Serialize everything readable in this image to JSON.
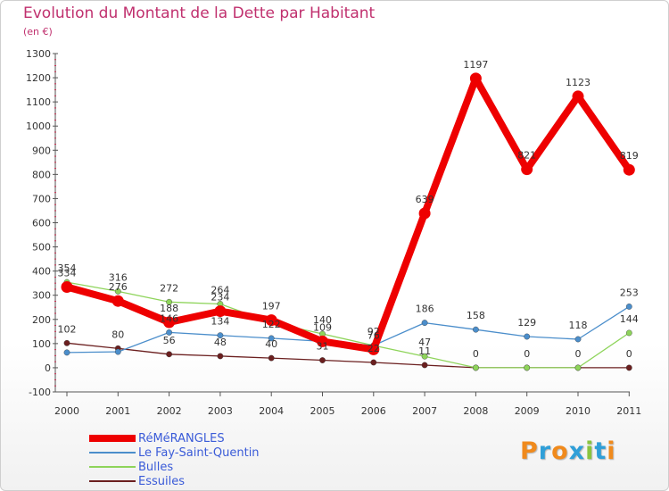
{
  "title": "Evolution du Montant de la Dette par Habitant",
  "subtitle": "(en €)",
  "logo": {
    "text": "Proxiti",
    "colors": [
      "#f08a1c",
      "#2f9fd8",
      "#f08a1c",
      "#2f9fd8",
      "#8ac43f",
      "#2f9fd8",
      "#f08a1c"
    ]
  },
  "chart_data": {
    "type": "line",
    "title": "Evolution du Montant de la Dette par Habitant",
    "subtitle": "(en €)",
    "categories": [
      "2000",
      "2001",
      "2002",
      "2003",
      "2004",
      "2005",
      "2006",
      "2007",
      "2008",
      "2009",
      "2010",
      "2011"
    ],
    "ylim": [
      -100,
      1300
    ],
    "yticks": [
      "-100",
      "0",
      "100",
      "200",
      "300",
      "400",
      "500",
      "600",
      "700",
      "800",
      "900",
      "1000",
      "1100",
      "1200",
      "1300"
    ],
    "grid": false,
    "legend_position": "bottom-left",
    "series": [
      {
        "name": "RéMéRANGLES",
        "color": "#ee0000",
        "values": [
          334,
          276,
          188,
          234,
          197,
          109,
          76,
          639,
          1197,
          821,
          1123,
          819
        ],
        "labels": [
          "334",
          "276",
          "188",
          "234",
          "197",
          "109",
          "76",
          "639",
          "1197",
          "821",
          "1123",
          "819"
        ]
      },
      {
        "name": "Le Fay-Saint-Quentin",
        "color": "#4b8ecb",
        "values": [
          63,
          66,
          146,
          134,
          122,
          109,
          92,
          186,
          158,
          129,
          118,
          253
        ],
        "labels": [
          "",
          "",
          "146",
          "134",
          "122",
          "",
          "",
          "186",
          "158",
          "129",
          "118",
          "253"
        ]
      },
      {
        "name": "Bulles",
        "color": "#8ed45a",
        "values": [
          354,
          316,
          272,
          264,
          187,
          140,
          92,
          47,
          0,
          0,
          0,
          144
        ],
        "labels": [
          "354",
          "316",
          "272",
          "264",
          "",
          "140",
          "92",
          "47",
          "",
          "",
          "",
          "144"
        ]
      },
      {
        "name": "Essuiles",
        "color": "#6b1f1f",
        "values": [
          102,
          80,
          56,
          48,
          40,
          31,
          22,
          11,
          0,
          0,
          0,
          0
        ],
        "labels": [
          "102",
          "80",
          "56",
          "48",
          "40",
          "31",
          "22",
          "11",
          "0",
          "0",
          "0",
          "0"
        ]
      }
    ]
  }
}
